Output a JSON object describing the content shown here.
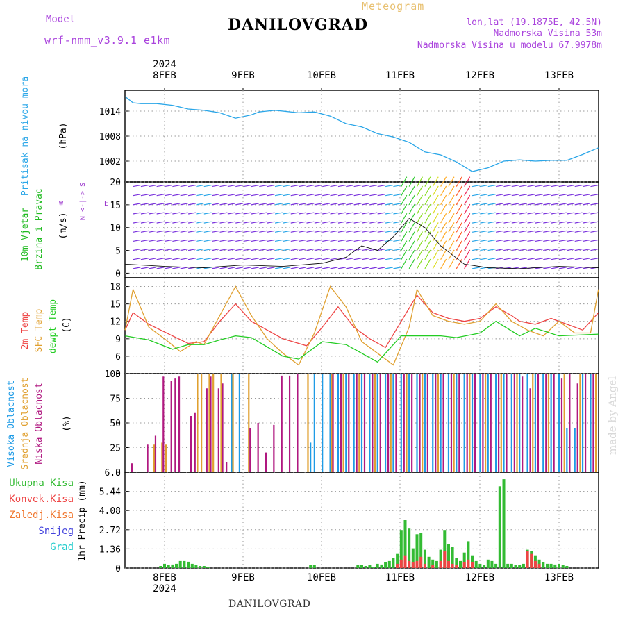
{
  "header": {
    "model_label": "Model",
    "model_value": "wrf-nmm_v3.9.1 e1km",
    "meteogram": "Meteogram",
    "station": "DANILOVGRAD",
    "lonlat": "lon,lat (19.1875E, 42.5N)",
    "altitude": "Nadmorska Visina 53m",
    "model_altitude": "Nadmorska Visina u modelu 67.9978m",
    "credit": "made by Angel",
    "footer_station": "DANILOVGRAD"
  },
  "colors": {
    "pressure": "#2aa6e8",
    "temp2m": "#ee4444",
    "sfc": "#e0a030",
    "dewpt": "#22cc22",
    "high_cloud": "#1e9be6",
    "mid_cloud": "#e0a030",
    "low_cloud": "#b01880",
    "total_precip": "#33bb33",
    "conv_precip": "#ee4444",
    "frozen": "#f07830",
    "snow": "#4444dd",
    "hail": "#22cccc",
    "grid": "#999999",
    "wind_label": "#9933cc"
  },
  "time_axis": {
    "top_year": "2024",
    "bottom_year": "2024",
    "day_labels": [
      "8FEB",
      "9FEB",
      "10FEB",
      "11FEB",
      "12FEB",
      "13FEB"
    ]
  },
  "chart_data": [
    {
      "type": "line",
      "title": "Pritisak na nivou mora",
      "ylabel": "(hPa)",
      "ylim": [
        997,
        1019
      ],
      "yticks": [
        "1014",
        "1008",
        "1002"
      ],
      "series": [
        {
          "name": "Pritisak na nivou mora",
          "x": [
            0,
            0.1,
            0.2,
            0.4,
            0.6,
            0.8,
            1.0,
            1.2,
            1.4,
            1.6,
            1.7,
            1.9,
            2.2,
            2.4,
            2.6,
            2.8,
            3.0,
            3.2,
            3.4,
            3.6,
            3.8,
            4.0,
            4.2,
            4.4,
            4.6,
            4.8,
            5.0,
            5.2,
            5.4,
            5.6,
            5.8,
            6.0
          ],
          "values": [
            1017.5,
            1016,
            1015.8,
            1015.8,
            1015.4,
            1014.5,
            1014.2,
            1013.6,
            1012.3,
            1013.1,
            1013.8,
            1014.2,
            1013.6,
            1013.8,
            1012.8,
            1011.0,
            1010.2,
            1008.6,
            1007.8,
            1006.5,
            1004.2,
            1003.5,
            1001.8,
            999.5,
            1000.4,
            1002.0,
            1002.3,
            1002.0,
            1002.2,
            1002.2,
            1003.6,
            1005.2
          ]
        }
      ]
    },
    {
      "type": "scatter",
      "title": "10m Vjetar Brzina i Pravac",
      "ylabel": "(m/s)",
      "ylim": [
        -1,
        20
      ],
      "yticks": [
        "20",
        "15",
        "10",
        "5",
        "0"
      ],
      "compass": [
        "N",
        "E",
        "W",
        "S"
      ],
      "series": [
        {
          "name": "10m Vjetar Brzina",
          "x": [
            0,
            0.5,
            1.0,
            1.5,
            2.0,
            2.5,
            2.8,
            3.0,
            3.2,
            3.4,
            3.6,
            3.8,
            4.0,
            4.3,
            4.6,
            5.0,
            5.5,
            6.0
          ],
          "values": [
            2,
            1.5,
            1.2,
            1.8,
            1.5,
            2.2,
            3.5,
            6,
            5,
            8,
            12,
            10,
            6,
            2,
            1.2,
            1.0,
            1.5,
            1.2
          ]
        }
      ]
    },
    {
      "type": "line",
      "title": "2m Temp / SFC Temp / dewpt Temp",
      "ylabel": "(C)",
      "ylim": [
        3,
        19.5
      ],
      "yticks": [
        "18",
        "15",
        "12",
        "9",
        "6",
        "3"
      ],
      "series": [
        {
          "name": "2m Temp",
          "x": [
            0,
            0.1,
            0.3,
            0.6,
            0.8,
            1.0,
            1.2,
            1.4,
            1.6,
            2.0,
            2.3,
            2.5,
            2.7,
            2.9,
            3.1,
            3.3,
            3.5,
            3.7,
            3.9,
            4.1,
            4.3,
            4.5,
            4.7,
            4.9,
            5.0,
            5.2,
            5.4,
            5.6,
            5.8,
            6.0
          ],
          "values": [
            10.5,
            13.5,
            11.5,
            9.5,
            8.2,
            8.5,
            12,
            15,
            12,
            9,
            7.8,
            11,
            14.5,
            11,
            9,
            7.5,
            12,
            16.5,
            13.5,
            12.5,
            12,
            12.5,
            14.5,
            13,
            12,
            11.5,
            12.5,
            11.5,
            10.5,
            13.5
          ]
        },
        {
          "name": "SFC Temp",
          "x": [
            0,
            0.1,
            0.3,
            0.5,
            0.7,
            0.9,
            1.0,
            1.2,
            1.4,
            1.6,
            1.8,
            2.0,
            2.2,
            2.4,
            2.6,
            2.8,
            3.0,
            3.2,
            3.4,
            3.6,
            3.7,
            3.9,
            4.1,
            4.3,
            4.5,
            4.7,
            4.9,
            5.1,
            5.3,
            5.5,
            5.7,
            5.9,
            6.0
          ],
          "values": [
            10.5,
            17.5,
            11,
            9,
            6.8,
            8.5,
            8.0,
            13,
            18,
            13,
            9,
            6.5,
            4.5,
            10,
            18,
            14.5,
            8.5,
            6.5,
            4.5,
            11,
            17.5,
            13,
            12,
            11.5,
            12,
            15,
            12,
            10.5,
            9.5,
            12,
            10,
            10,
            17.5
          ]
        },
        {
          "name": "dewpt Temp",
          "x": [
            0,
            0.3,
            0.6,
            0.8,
            1.0,
            1.2,
            1.4,
            1.6,
            2.0,
            2.2,
            2.5,
            2.8,
            3.0,
            3.2,
            3.5,
            3.7,
            4.0,
            4.2,
            4.5,
            4.7,
            5.0,
            5.2,
            5.5,
            6.0
          ],
          "values": [
            9.5,
            8.8,
            7.2,
            8.0,
            8.0,
            8.8,
            9.5,
            9.2,
            6,
            5.5,
            8.5,
            8.0,
            6.5,
            5,
            9.5,
            9.5,
            9.5,
            9.2,
            10,
            12.0,
            9.5,
            10.8,
            9.5,
            9.8
          ]
        }
      ]
    },
    {
      "type": "bar",
      "title": "Visoka / Srednja / Niska Oblacnost",
      "ylabel": "(%)",
      "ylim": [
        0,
        100
      ],
      "yticks": [
        "100",
        "75",
        "50",
        "25",
        "0"
      ],
      "series": [
        {
          "name": "Visoka Oblacnost",
          "x": [
            1.35,
            1.45,
            2.35,
            2.4,
            2.5,
            2.6,
            2.7,
            2.8,
            2.9,
            3.0,
            3.1,
            3.2,
            3.3,
            3.4,
            3.5,
            3.6,
            3.7,
            3.8,
            3.9,
            4.0,
            4.1,
            4.2,
            4.3,
            4.4,
            4.5,
            4.6,
            4.7,
            4.8,
            4.9,
            5.0,
            5.1,
            5.2,
            5.3,
            5.4,
            5.5,
            5.6,
            5.7,
            5.8,
            5.9,
            6.0
          ],
          "values": [
            100,
            100,
            30,
            100,
            100,
            100,
            100,
            100,
            100,
            100,
            100,
            100,
            100,
            100,
            100,
            100,
            100,
            100,
            100,
            100,
            100,
            100,
            100,
            100,
            100,
            100,
            100,
            100,
            100,
            100,
            100,
            100,
            100,
            100,
            100,
            45,
            45,
            100,
            100,
            100
          ]
        },
        {
          "name": "Srednja Oblacnost",
          "x": [
            0.35,
            0.45,
            0.5,
            0.9,
            0.95,
            1.05,
            1.1,
            1.2,
            1.35,
            1.55,
            2.3,
            2.6,
            2.75,
            2.95,
            3.15,
            3.35,
            3.55,
            3.75,
            3.95,
            4.15,
            4.35,
            4.55,
            4.75,
            4.95,
            5.15,
            5.35,
            5.55,
            5.75,
            5.95
          ],
          "values": [
            28,
            30,
            28,
            100,
            100,
            100,
            100,
            100,
            100,
            100,
            100,
            100,
            100,
            100,
            100,
            100,
            100,
            100,
            100,
            100,
            100,
            100,
            100,
            100,
            100,
            100,
            100,
            100,
            100
          ]
        },
        {
          "name": "Niska Oblacnost",
          "x": [
            0.05,
            0.25,
            0.35,
            0.45,
            0.55,
            0.6,
            0.65,
            0.8,
            0.85,
            1.0,
            1.05,
            1.15,
            1.2,
            1.25,
            1.55,
            1.65,
            1.75,
            1.85,
            1.95,
            2.05,
            2.15,
            2.6,
            2.7,
            2.8,
            2.9,
            3.0,
            3.1,
            3.2,
            3.3,
            3.4,
            3.5,
            3.6,
            3.7,
            3.8,
            3.9,
            4.0,
            4.1,
            4.2,
            4.3,
            4.4,
            4.5,
            4.6,
            4.7,
            4.8,
            4.9,
            5.0,
            5.1,
            5.2,
            5.3,
            5.4,
            5.5,
            5.6,
            5.7,
            5.8,
            5.9
          ],
          "values": [
            9,
            28,
            37,
            97,
            93,
            95,
            97,
            57,
            60,
            85,
            97,
            85,
            90,
            10,
            45,
            50,
            20,
            48,
            98,
            98,
            100,
            100,
            100,
            100,
            100,
            100,
            100,
            100,
            100,
            100,
            100,
            100,
            100,
            100,
            100,
            100,
            100,
            100,
            100,
            100,
            100,
            100,
            100,
            100,
            100,
            97,
            85,
            100,
            100,
            100,
            95,
            100,
            90,
            100,
            100
          ]
        }
      ]
    },
    {
      "type": "bar",
      "title": "1hr Precip",
      "ylabel": "1hr Precip (mm)",
      "ylim": [
        0,
        6.8
      ],
      "yticks": [
        "6.8",
        "5.44",
        "4.08",
        "2.72",
        "1.36",
        "0"
      ],
      "legend": [
        "Ukupna Kisa",
        "Konvek.Kisa",
        "Zaledj.Kisa",
        "Snijeg",
        "Grad"
      ],
      "series": [
        {
          "name": "Ukupna Kisa",
          "x": [
            0.45,
            0.5,
            0.55,
            0.6,
            0.65,
            0.7,
            0.75,
            0.8,
            0.85,
            0.9,
            0.95,
            1.0,
            1.05,
            2.35,
            2.4,
            2.95,
            3.0,
            3.05,
            3.1,
            3.15,
            3.2,
            3.25,
            3.3,
            3.35,
            3.4,
            3.45,
            3.5,
            3.55,
            3.6,
            3.65,
            3.7,
            3.75,
            3.8,
            3.85,
            3.9,
            3.95,
            4.0,
            4.05,
            4.1,
            4.15,
            4.2,
            4.25,
            4.3,
            4.35,
            4.4,
            4.45,
            4.5,
            4.55,
            4.6,
            4.65,
            4.7,
            4.75,
            4.8,
            4.85,
            4.9,
            4.95,
            5.0,
            5.05,
            5.1,
            5.15,
            5.2,
            5.25,
            5.3,
            5.35,
            5.4,
            5.45,
            5.5,
            5.55,
            5.6
          ],
          "values": [
            0.15,
            0.3,
            0.2,
            0.25,
            0.3,
            0.5,
            0.5,
            0.45,
            0.3,
            0.2,
            0.15,
            0.15,
            0.1,
            0.2,
            0.2,
            0.2,
            0.2,
            0.15,
            0.2,
            0.1,
            0.3,
            0.25,
            0.4,
            0.5,
            0.7,
            1.0,
            2.7,
            3.4,
            2.8,
            1.4,
            2.4,
            2.5,
            1.3,
            0.8,
            0.6,
            0.5,
            1.3,
            2.7,
            1.7,
            1.5,
            0.7,
            0.5,
            1.1,
            1.9,
            0.9,
            0.5,
            0.3,
            0.2,
            0.6,
            0.5,
            0.3,
            5.8,
            6.3,
            0.3,
            0.3,
            0.2,
            0.2,
            0.3,
            1.3,
            1.2,
            0.9,
            0.6,
            0.4,
            0.3,
            0.3,
            0.25,
            0.3,
            0.2,
            0.15
          ]
        },
        {
          "name": "Konvek.Kisa",
          "x": [
            3.45,
            3.5,
            3.55,
            3.6,
            3.65,
            3.7,
            3.75,
            3.8,
            3.9,
            4.0,
            4.05,
            4.1,
            4.15,
            4.2,
            4.3,
            4.35,
            4.4,
            5.1,
            5.15,
            5.2,
            5.25
          ],
          "values": [
            0.3,
            0.6,
            0.9,
            0.5,
            0.4,
            0.5,
            0.8,
            0.3,
            0.2,
            0.5,
            1.2,
            0.5,
            0.3,
            0.2,
            0.4,
            0.6,
            0.4,
            1.2,
            1.0,
            0.5,
            0.3
          ]
        },
        {
          "name": "Zaledj.Kisa",
          "x": [],
          "values": []
        },
        {
          "name": "Snijeg",
          "x": [],
          "values": []
        },
        {
          "name": "Grad",
          "x": [],
          "values": []
        }
      ]
    }
  ],
  "panel_labels": {
    "pressure": {
      "title": "Pritisak na nivou mora",
      "unit": "(hPa)"
    },
    "wind": {
      "title1": "10m Vjetar",
      "title2": "Brzina i Pravac",
      "unit": "(m/s)",
      "compass_w": "W",
      "compass_e": "E",
      "compass_ns": "N <-|-> S",
      "compass_ns2": "W <-|-> E"
    },
    "temp": {
      "t2m": "2m Temp",
      "sfc": "SFC Temp",
      "dewpt": "dewpt Temp",
      "unit": "(C)"
    },
    "cloud": {
      "high": "Visoka Oblacnost",
      "mid": "Srednja Oblacnost",
      "low": "Niska Oblacnost",
      "unit": "(%)"
    },
    "precip": {
      "unit": "1hr Precip (mm)"
    }
  }
}
